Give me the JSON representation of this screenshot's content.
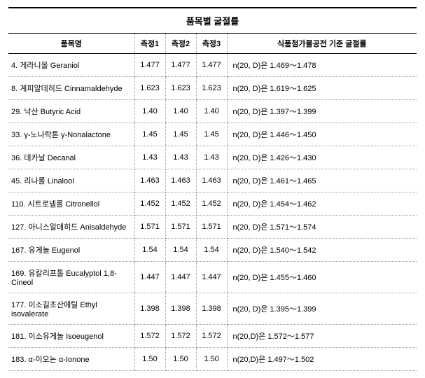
{
  "table": {
    "title": "품목별 굴절률",
    "headers": {
      "name": "품목명",
      "m1": "측정1",
      "m2": "측정2",
      "m3": "측정3",
      "spec": "식품첨가물공전 기준 굴절률"
    },
    "rows": [
      {
        "name": "4. 게라니올 Geraniol",
        "m1": "1.477",
        "m2": "1.477",
        "m3": "1.477",
        "spec": "n(20, D)은 1.469～1.478"
      },
      {
        "name": "8. 계피알데히드 Cinnamaldehyde",
        "m1": "1.623",
        "m2": "1.623",
        "m3": "1.623",
        "spec": "n(20, D)은 1.619～1.625"
      },
      {
        "name": "29. 낙산 Butyric Acid",
        "m1": "1.40",
        "m2": "1.40",
        "m3": "1.40",
        "spec": "n(20, D)은 1.397～1.399"
      },
      {
        "name": "33. γ-노나락톤 γ-Nonalactone",
        "m1": "1.45",
        "m2": "1.45",
        "m3": "1.45",
        "spec": "n(20, D)은 1.446～1.450"
      },
      {
        "name": "36. 데카날 Decanal",
        "m1": "1.43",
        "m2": "1.43",
        "m3": "1.43",
        "spec": "n(20, D)은 1.426～1.430"
      },
      {
        "name": "45. 리나롤 Linalool",
        "m1": "1.463",
        "m2": "1.463",
        "m3": "1.463",
        "spec": "n(20, D)은 1.461～1.465"
      },
      {
        "name": "110. 시트로넬롤 Citronellol",
        "m1": "1.452",
        "m2": "1.452",
        "m3": "1.452",
        "spec": "n(20, D)은 1.454～1.462"
      },
      {
        "name": "127. 아니스알데히드 Anisaldehyde",
        "m1": "1.571",
        "m2": "1.571",
        "m3": "1.571",
        "spec": "n(20, D)은 1.571～1.574"
      },
      {
        "name": "167. 유게놀 Eugenol",
        "m1": "1.54",
        "m2": "1.54",
        "m3": "1.54",
        "spec": "n(20, D)은 1.540～1.542"
      },
      {
        "name": "169. 유칼리프톨 Eucalyptol 1,8-Cineol",
        "m1": "1.447",
        "m2": "1.447",
        "m3": "1.447",
        "spec": "n(20, D)은 1.455～1.460"
      },
      {
        "name": "177. 이소길초산에틸 Ethyl isovalerate",
        "m1": "1.398",
        "m2": "1.398",
        "m3": "1.398",
        "spec": "n(20, D)은 1.395～1.399"
      },
      {
        "name": "181. 이소유게놀 Isoeugenol",
        "m1": "1.572",
        "m2": "1.572",
        "m3": "1.572",
        "spec": "n(20,D)은 1.572～1.577"
      },
      {
        "name": "183. α-이오논 α-Ionone",
        "m1": "1.50",
        "m2": "1.50",
        "m3": "1.50",
        "spec": "n(20,D)은 1.497～1.502"
      }
    ]
  }
}
